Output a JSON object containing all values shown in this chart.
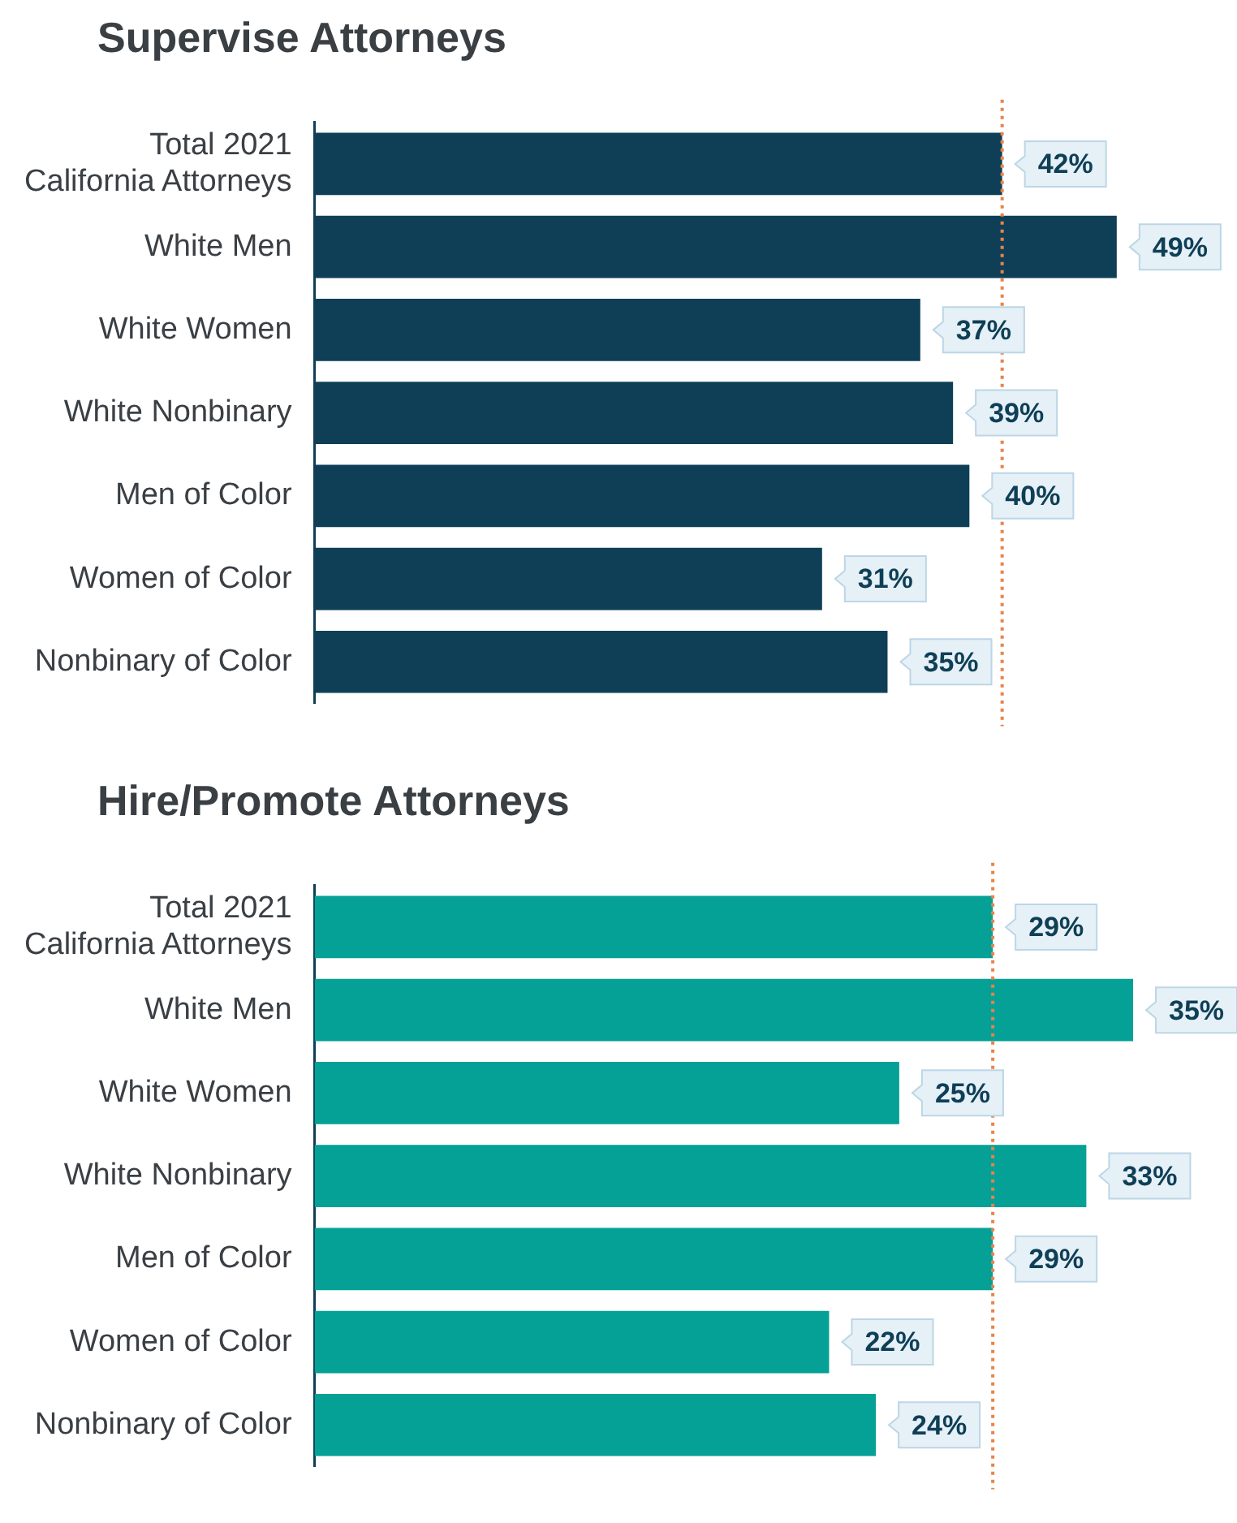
{
  "chart_data": [
    {
      "type": "bar",
      "orientation": "horizontal",
      "title": "Supervise Attorneys",
      "categories": [
        "Total 2021\nCalifornia Attorneys",
        "White Men",
        "White Women",
        "White Nonbinary",
        "Men of Color",
        "Women of Color",
        "Nonbinary of Color"
      ],
      "values": [
        42,
        49,
        37,
        39,
        40,
        31,
        35
      ],
      "value_labels": [
        "42%",
        "49%",
        "37%",
        "39%",
        "40%",
        "31%",
        "35%"
      ],
      "color": "#0e3f56",
      "tick_labels": "y",
      "grid": false,
      "legend": false,
      "ref_lines": [
        {
          "axis": "x",
          "value": 42,
          "color": "#e8834a",
          "line_style": "dotted"
        }
      ]
    },
    {
      "type": "bar",
      "orientation": "horizontal",
      "title": "Hire/Promote Attorneys",
      "categories": [
        "Total 2021\nCalifornia Attorneys",
        "White Men",
        "White Women",
        "White Nonbinary",
        "Men of Color",
        "Women of Color",
        "Nonbinary of Color"
      ],
      "values": [
        29,
        35,
        25,
        33,
        29,
        22,
        24
      ],
      "value_labels": [
        "29%",
        "35%",
        "25%",
        "33%",
        "29%",
        "22%",
        "24%"
      ],
      "color": "#05a096",
      "tick_labels": "y",
      "grid": false,
      "legend": false,
      "ref_lines": [
        {
          "axis": "x",
          "value": 29,
          "color": "#e8834a",
          "line_style": "dotted"
        }
      ]
    }
  ]
}
